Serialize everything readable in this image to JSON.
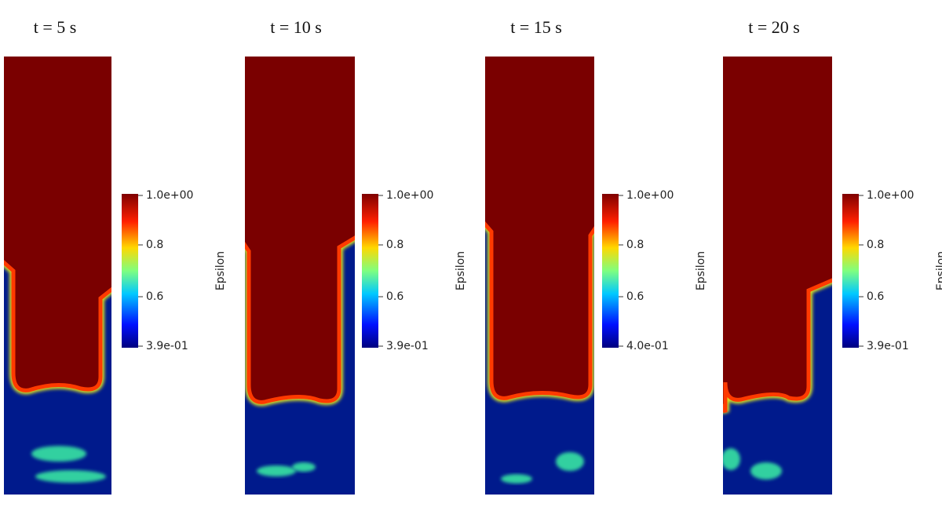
{
  "panels": [
    {
      "title": "t = 5 s",
      "colorbar": {
        "ticks": [
          "1.0e+00",
          "0.8",
          "0.6",
          "3.9e-01"
        ],
        "label": "Epsilon"
      }
    },
    {
      "title": "t = 10 s",
      "colorbar": {
        "ticks": [
          "1.0e+00",
          "0.8",
          "0.6",
          "3.9e-01"
        ],
        "label": "Epsilon"
      }
    },
    {
      "title": "t = 15 s",
      "colorbar": {
        "ticks": [
          "1.0e+00",
          "0.8",
          "0.6",
          "4.0e-01"
        ],
        "label": "Epsilon"
      }
    },
    {
      "title": "t = 20 s",
      "colorbar": {
        "ticks": [
          "1.0e+00",
          "0.8",
          "0.6",
          "3.9e-01"
        ],
        "label": "Epsilon"
      }
    }
  ]
}
